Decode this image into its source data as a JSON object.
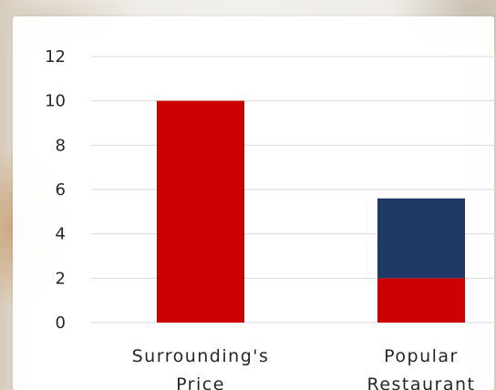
{
  "chart_data": {
    "type": "bar",
    "stacked": true,
    "title": "",
    "xlabel": "",
    "ylabel": "",
    "ylim": [
      0,
      12
    ],
    "yticks": [
      0,
      2,
      4,
      6,
      8,
      10,
      12
    ],
    "grid": true,
    "legend": "none",
    "categories": [
      [
        "Surrounding's",
        "Price"
      ],
      [
        "Popular",
        "Restaurant"
      ]
    ],
    "series": [
      {
        "values": [
          10,
          2
        ],
        "color": "#cc0000"
      },
      {
        "values": [
          0,
          3.6
        ],
        "color": "#203864"
      }
    ],
    "gridline_color": "#d9d9d9"
  }
}
